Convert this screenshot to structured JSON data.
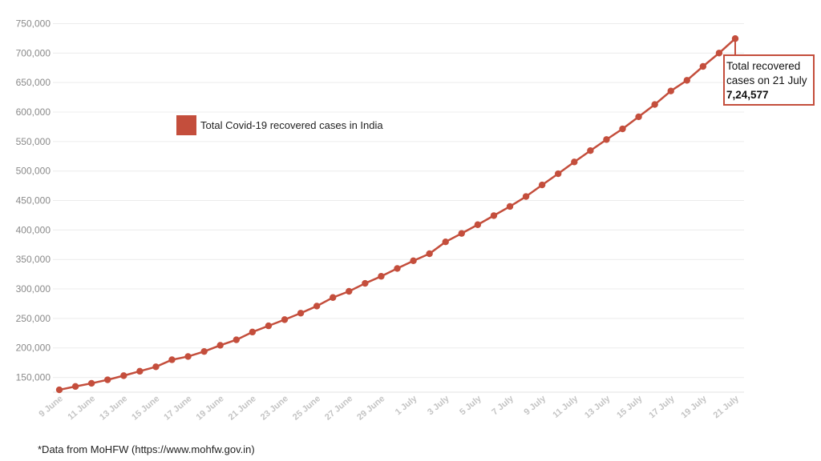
{
  "chart_data": {
    "type": "line",
    "title": "",
    "xlabel": "",
    "ylabel": "",
    "ylim": [
      125000,
      750000
    ],
    "yticks": [
      150000,
      200000,
      250000,
      300000,
      350000,
      400000,
      450000,
      500000,
      550000,
      600000,
      650000,
      700000,
      750000
    ],
    "ytick_labels": [
      "150,000",
      "200,000",
      "250,000",
      "300,000",
      "350,000",
      "400,000",
      "450,000",
      "500,000",
      "550,000",
      "600,000",
      "650,000",
      "700,000",
      "750,000"
    ],
    "grid": true,
    "legend_position": "top-left",
    "categories": [
      "9 June",
      "10 June",
      "11 June",
      "12 June",
      "13 June",
      "14 June",
      "15 June",
      "16 June",
      "17 June",
      "18 June",
      "19 June",
      "20 June",
      "21 June",
      "22 June",
      "23 June",
      "24 June",
      "25 June",
      "26 June",
      "27 June",
      "28 June",
      "29 June",
      "30 June",
      "1 July",
      "2 July",
      "3 July",
      "4 July",
      "5 July",
      "6 July",
      "7 July",
      "8 July",
      "9 July",
      "10 July",
      "11 July",
      "12 July",
      "13 July",
      "14 July",
      "15 July",
      "16 July",
      "17 July",
      "18 July",
      "19 July",
      "20 July",
      "21 July"
    ],
    "x_tick_labels": [
      "9 June",
      "",
      "11 June",
      "",
      "13 June",
      "",
      "15 June",
      "",
      "17 June",
      "",
      "19 June",
      "",
      "21 June",
      "",
      "23 June",
      "",
      "25 June",
      "",
      "27 June",
      "",
      "29 June",
      "",
      "1 July",
      "",
      "3 July",
      "",
      "5 July",
      "",
      "7 July",
      "",
      "9 July",
      "",
      "11 July",
      "",
      "13 July",
      "",
      "15 July",
      "",
      "17 July",
      "",
      "19 July",
      "",
      "21 July"
    ],
    "series": [
      {
        "name": "Total Covid-19 recovered cases in India",
        "color": "#c44e3c",
        "values": [
          129000,
          134700,
          140000,
          146000,
          153000,
          160500,
          168000,
          180000,
          185500,
          194000,
          204500,
          213800,
          227000,
          237500,
          248000,
          259000,
          271000,
          285500,
          296000,
          309500,
          321500,
          334800,
          347800,
          359800,
          379900,
          394200,
          409000,
          424400,
          439900,
          456800,
          476400,
          495500,
          515400,
          534600,
          553400,
          571500,
          592000,
          612800,
          635700,
          653800,
          677400,
          700100,
          724577
        ]
      }
    ],
    "annotation": {
      "line1": "Total recovered",
      "line2": "cases on 21 July",
      "value": "7,24,577"
    }
  },
  "footnote": "*Data from MoHFW (https://www.mohfw.gov.in)"
}
